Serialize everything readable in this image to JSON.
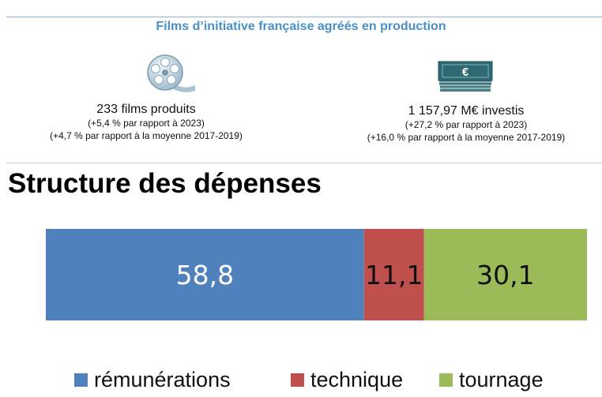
{
  "header": {
    "title": "Films d’initiative française agréés en production"
  },
  "stats": [
    {
      "icon": "film-reel-icon",
      "main": "233 films produits",
      "sub1": "(+5,4 % par rapport à 2023)",
      "sub2": "(+4,7 % par rapport à la moyenne 2017-2019)"
    },
    {
      "icon": "euro-banknotes-icon",
      "icon_text": "€",
      "main": "1 157,97 M€ investis",
      "sub1": "(+27,2 % par rapport à 2023)",
      "sub2": "(+16,0 % par rapport à la moyenne 2017-2019)"
    }
  ],
  "section_title": "Structure des dépenses",
  "chart_data": {
    "type": "bar",
    "orientation": "horizontal-stacked-100",
    "categories": [
      ""
    ],
    "series": [
      {
        "name": "rémunérations",
        "values": [
          58.8
        ],
        "label": "58,8",
        "color": "#4f81bd",
        "label_color": "#ffffff"
      },
      {
        "name": "technique",
        "values": [
          11.1
        ],
        "label": "11,1",
        "color": "#c0504d",
        "label_color": "#111111"
      },
      {
        "name": "tournage",
        "values": [
          30.1
        ],
        "label": "30,1",
        "color": "#9bbb59",
        "label_color": "#111111"
      }
    ],
    "xlim": [
      0,
      100
    ],
    "grid": false,
    "legend_placement": "bottom"
  }
}
